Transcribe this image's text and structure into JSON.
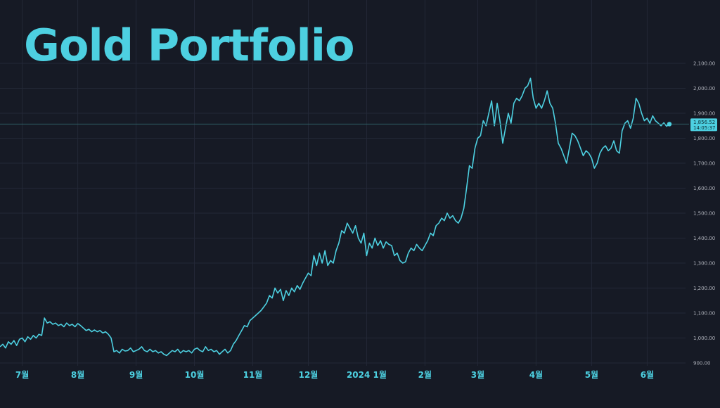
{
  "title": "Gold Portfolio",
  "colors": {
    "background": "#161a25",
    "line": "#4dd0e1",
    "grid": "#232837",
    "tick_text": "#b2b5be",
    "price_line": "#2f5f66",
    "price_tag": "#4dd0e1"
  },
  "chart_data": {
    "type": "line",
    "title": "Gold Portfolio",
    "xlabel": "",
    "ylabel": "",
    "ylim": [
      900,
      2100
    ],
    "grid": true,
    "legend": "none",
    "y_ticks": [
      "2,100.00",
      "2,000.00",
      "1,900.00",
      "1,800.00",
      "1,700.00",
      "1,600.00",
      "1,500.00",
      "1,400.00",
      "1,300.00",
      "1,200.00",
      "1,100.00",
      "1,000.00",
      "900.00"
    ],
    "y_tick_values": [
      2100,
      2000,
      1900,
      1800,
      1700,
      1600,
      1500,
      1400,
      1300,
      1200,
      1100,
      1000,
      900
    ],
    "x_ticks": [
      {
        "label": "7월",
        "index": 8
      },
      {
        "label": "8월",
        "index": 28
      },
      {
        "label": "9월",
        "index": 49
      },
      {
        "label": "10월",
        "index": 70
      },
      {
        "label": "11월",
        "index": 91
      },
      {
        "label": "12월",
        "index": 111
      },
      {
        "label": "2024 1월",
        "index": 132
      },
      {
        "label": "2월",
        "index": 153
      },
      {
        "label": "3월",
        "index": 172
      },
      {
        "label": "4월",
        "index": 193
      },
      {
        "label": "5월",
        "index": 213
      },
      {
        "label": "6월",
        "index": 233
      }
    ],
    "last_price": {
      "value": 1856.52,
      "label": "1,856.52",
      "time": "14:05:37"
    },
    "series": [
      {
        "values": [
          965,
          975,
          960,
          985,
          975,
          990,
          970,
          995,
          1000,
          985,
          1005,
          995,
          1010,
          1000,
          1015,
          1010,
          1080,
          1060,
          1065,
          1055,
          1060,
          1050,
          1055,
          1045,
          1060,
          1050,
          1055,
          1045,
          1058,
          1050,
          1040,
          1030,
          1035,
          1025,
          1032,
          1025,
          1030,
          1020,
          1025,
          1015,
          1000,
          945,
          950,
          940,
          955,
          948,
          950,
          960,
          945,
          950,
          955,
          965,
          950,
          945,
          955,
          945,
          950,
          940,
          945,
          935,
          930,
          940,
          950,
          945,
          955,
          940,
          950,
          945,
          950,
          940,
          955,
          960,
          950,
          945,
          965,
          950,
          955,
          945,
          950,
          935,
          945,
          955,
          940,
          950,
          975,
          990,
          1010,
          1030,
          1050,
          1045,
          1070,
          1080,
          1090,
          1100,
          1110,
          1125,
          1140,
          1170,
          1160,
          1200,
          1180,
          1195,
          1150,
          1190,
          1170,
          1200,
          1185,
          1210,
          1195,
          1220,
          1240,
          1260,
          1250,
          1330,
          1290,
          1340,
          1300,
          1350,
          1290,
          1310,
          1300,
          1350,
          1380,
          1430,
          1420,
          1460,
          1440,
          1420,
          1450,
          1400,
          1380,
          1420,
          1330,
          1380,
          1360,
          1400,
          1370,
          1390,
          1360,
          1385,
          1375,
          1370,
          1330,
          1340,
          1310,
          1300,
          1305,
          1340,
          1360,
          1350,
          1375,
          1360,
          1350,
          1370,
          1390,
          1420,
          1410,
          1450,
          1460,
          1480,
          1470,
          1500,
          1480,
          1490,
          1470,
          1460,
          1480,
          1520,
          1600,
          1690,
          1680,
          1760,
          1800,
          1810,
          1870,
          1850,
          1900,
          1950,
          1850,
          1940,
          1870,
          1780,
          1840,
          1900,
          1860,
          1940,
          1960,
          1950,
          1970,
          2000,
          2010,
          2040,
          1960,
          1920,
          1940,
          1920,
          1950,
          1990,
          1940,
          1920,
          1860,
          1780,
          1760,
          1730,
          1700,
          1760,
          1820,
          1810,
          1790,
          1760,
          1730,
          1750,
          1740,
          1720,
          1680,
          1700,
          1740,
          1760,
          1770,
          1750,
          1760,
          1790,
          1750,
          1740,
          1830,
          1860,
          1870,
          1840,
          1880,
          1960,
          1940,
          1900,
          1870,
          1880,
          1860,
          1890,
          1870,
          1860,
          1850,
          1862,
          1848,
          1856
        ]
      }
    ]
  }
}
